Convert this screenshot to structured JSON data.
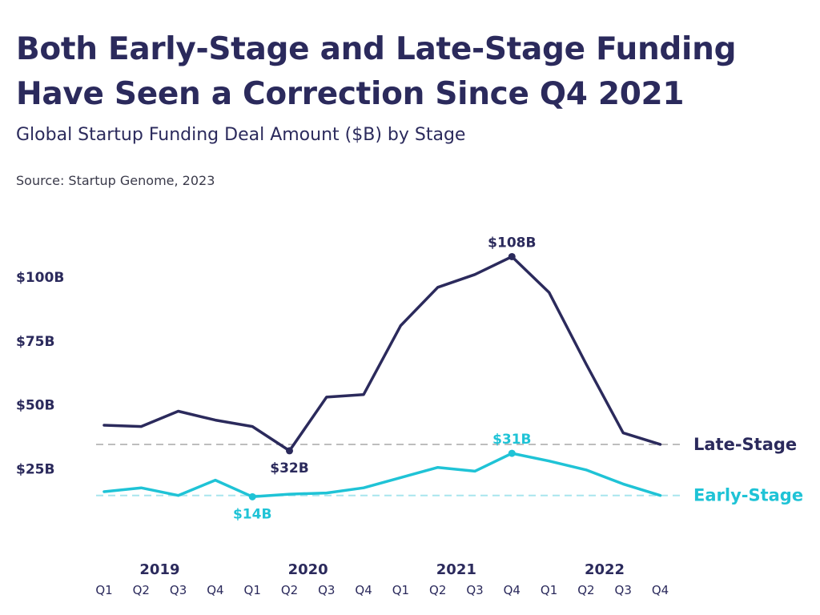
{
  "header": {
    "title": "Both Early-Stage and Late-Stage Funding Have Seen a Correction Since Q4 2021",
    "subtitle": "Global Startup Funding Deal Amount ($B) by Stage",
    "source": "Source: Startup Genome, 2023"
  },
  "colors": {
    "late": "#2b2a5c",
    "early": "#1fc3d6",
    "late_ref": "#bdbdbd",
    "early_ref": "#a8e6ee"
  },
  "chart_data": {
    "type": "line",
    "title": "Both Early-Stage and Late-Stage Funding Have Seen a Correction Since Q4 2021",
    "subtitle": "Global Startup Funding Deal Amount ($B) by Stage",
    "xlabel": "",
    "ylabel": "",
    "ylim": [
      0,
      115
    ],
    "grid": false,
    "legend": "direct labels at right end of lines",
    "yticks": [
      {
        "value": 25,
        "label": "$25B"
      },
      {
        "value": 50,
        "label": "$50B"
      },
      {
        "value": 75,
        "label": "$75B"
      },
      {
        "value": 100,
        "label": "$100B"
      }
    ],
    "categories": [
      "Q1",
      "Q2",
      "Q3",
      "Q4",
      "Q1",
      "Q2",
      "Q3",
      "Q4",
      "Q1",
      "Q2",
      "Q3",
      "Q4",
      "Q1",
      "Q2",
      "Q3",
      "Q4"
    ],
    "years": [
      {
        "label": "2019",
        "from": 0,
        "to": 3
      },
      {
        "label": "2020",
        "from": 4,
        "to": 7
      },
      {
        "label": "2021",
        "from": 8,
        "to": 11
      },
      {
        "label": "2022",
        "from": 12,
        "to": 15
      }
    ],
    "series": [
      {
        "name": "Late-Stage",
        "color": "#2b2a5c",
        "values": [
          42,
          41.5,
          47.5,
          44,
          41.5,
          32,
          53,
          54,
          81,
          96,
          101,
          108,
          94,
          66,
          39,
          34.5
        ],
        "reference_value": 34.5
      },
      {
        "name": "Early-Stage",
        "color": "#1fc3d6",
        "values": [
          16,
          17.5,
          14.5,
          20.5,
          14,
          15,
          15.5,
          17.5,
          21.5,
          25.5,
          24,
          31,
          28,
          24.5,
          19,
          14.5
        ],
        "reference_value": 14.5
      }
    ],
    "annotations": [
      {
        "series": 0,
        "index": 5,
        "label": "$32B",
        "position": "below"
      },
      {
        "series": 0,
        "index": 11,
        "label": "$108B",
        "position": "above"
      },
      {
        "series": 1,
        "index": 4,
        "label": "$14B",
        "position": "below"
      },
      {
        "series": 1,
        "index": 11,
        "label": "$31B",
        "position": "above"
      }
    ]
  }
}
